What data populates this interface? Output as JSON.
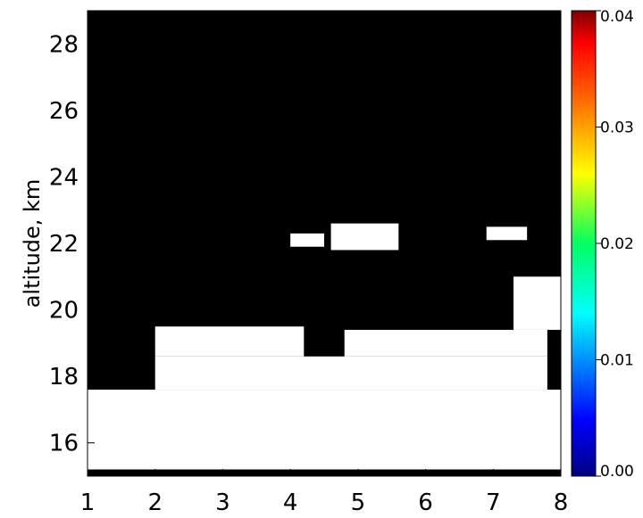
{
  "chart_data": {
    "type": "heatmap",
    "title": "",
    "xlabel": "",
    "ylabel": "altitude, km",
    "xlim": [
      1,
      8
    ],
    "ylim": [
      15,
      29
    ],
    "x_ticks": [
      "1",
      "2",
      "3",
      "4",
      "5",
      "6",
      "7",
      "8"
    ],
    "y_ticks": [
      "16",
      "18",
      "20",
      "22",
      "24",
      "26",
      "28"
    ],
    "colorbar": {
      "range": [
        0.0,
        0.04
      ],
      "ticks": [
        "0.00",
        "0.01",
        "0.02",
        "0.03",
        "0.04"
      ],
      "colormap": "rainbow",
      "background_color": "#000000",
      "saturated_color": "#ffffff"
    },
    "regions": [
      {
        "x": [
          1.0,
          8.0
        ],
        "y": [
          15.2,
          17.6
        ],
        "level": "saturated"
      },
      {
        "x": [
          2.0,
          7.8
        ],
        "y": [
          17.6,
          18.6
        ],
        "level": "saturated"
      },
      {
        "x": [
          2.0,
          4.2
        ],
        "y": [
          18.6,
          19.5
        ],
        "level": "saturated"
      },
      {
        "x": [
          4.8,
          7.8
        ],
        "y": [
          18.6,
          19.4
        ],
        "level": "saturated"
      },
      {
        "x": [
          7.3,
          8.0
        ],
        "y": [
          19.4,
          21.0
        ],
        "level": "saturated"
      },
      {
        "x": [
          4.6,
          5.6
        ],
        "y": [
          21.8,
          22.6
        ],
        "level": "saturated"
      },
      {
        "x": [
          6.9,
          7.5
        ],
        "y": [
          22.1,
          22.5
        ],
        "level": "saturated"
      },
      {
        "x": [
          4.0,
          4.5
        ],
        "y": [
          21.9,
          22.3
        ],
        "level": "saturated"
      }
    ]
  }
}
